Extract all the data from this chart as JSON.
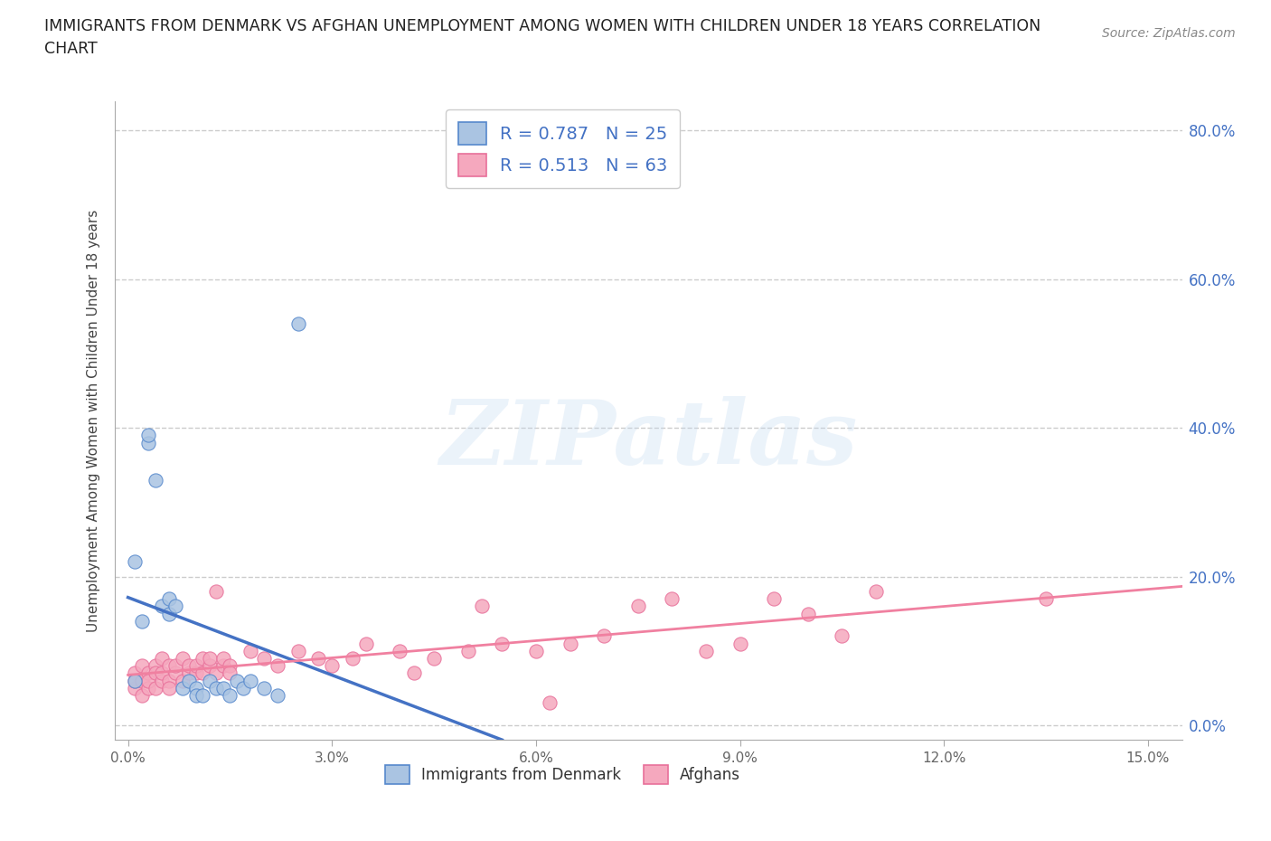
{
  "title_line1": "IMMIGRANTS FROM DENMARK VS AFGHAN UNEMPLOYMENT AMONG WOMEN WITH CHILDREN UNDER 18 YEARS CORRELATION",
  "title_line2": "CHART",
  "source": "Source: ZipAtlas.com",
  "ylabel": "Unemployment Among Women with Children Under 18 years",
  "x_ticks": [
    0.0,
    0.03,
    0.06,
    0.09,
    0.12,
    0.15
  ],
  "x_tick_labels": [
    "0.0%",
    "3.0%",
    "6.0%",
    "9.0%",
    "12.0%",
    "15.0%"
  ],
  "y_ticks": [
    0.0,
    0.2,
    0.4,
    0.6,
    0.8
  ],
  "y_tick_labels_right": [
    "0.0%",
    "20.0%",
    "40.0%",
    "60.0%",
    "80.0%"
  ],
  "xlim": [
    -0.002,
    0.155
  ],
  "ylim": [
    -0.02,
    0.84
  ],
  "denmark_face_color": "#aac4e2",
  "denmark_edge_color": "#5588cc",
  "afghan_face_color": "#f5a8be",
  "afghan_edge_color": "#e8709a",
  "denmark_line_color": "#4472c4",
  "afghan_line_color": "#f080a0",
  "denmark_R": "0.787",
  "denmark_N": "25",
  "afghan_R": "0.513",
  "afghan_N": "63",
  "watermark_text": "ZIPatlas",
  "legend_label_denmark": "Immigrants from Denmark",
  "legend_label_afghan": "Afghans",
  "denmark_scatter_x": [
    0.001,
    0.001,
    0.002,
    0.003,
    0.003,
    0.004,
    0.005,
    0.006,
    0.006,
    0.007,
    0.008,
    0.009,
    0.01,
    0.01,
    0.011,
    0.012,
    0.013,
    0.014,
    0.015,
    0.016,
    0.017,
    0.018,
    0.02,
    0.022,
    0.025
  ],
  "denmark_scatter_y": [
    0.06,
    0.22,
    0.14,
    0.38,
    0.39,
    0.33,
    0.16,
    0.17,
    0.15,
    0.16,
    0.05,
    0.06,
    0.05,
    0.04,
    0.04,
    0.06,
    0.05,
    0.05,
    0.04,
    0.06,
    0.05,
    0.06,
    0.05,
    0.04,
    0.54
  ],
  "afghan_scatter_x": [
    0.001,
    0.001,
    0.001,
    0.002,
    0.002,
    0.002,
    0.003,
    0.003,
    0.003,
    0.004,
    0.004,
    0.004,
    0.005,
    0.005,
    0.005,
    0.006,
    0.006,
    0.006,
    0.007,
    0.007,
    0.008,
    0.008,
    0.009,
    0.009,
    0.01,
    0.01,
    0.011,
    0.011,
    0.012,
    0.012,
    0.013,
    0.013,
    0.014,
    0.014,
    0.015,
    0.015,
    0.018,
    0.02,
    0.022,
    0.025,
    0.028,
    0.03,
    0.033,
    0.035,
    0.04,
    0.042,
    0.045,
    0.05,
    0.052,
    0.055,
    0.06,
    0.062,
    0.065,
    0.07,
    0.075,
    0.08,
    0.085,
    0.09,
    0.095,
    0.1,
    0.105,
    0.11,
    0.135
  ],
  "afghan_scatter_y": [
    0.05,
    0.07,
    0.06,
    0.04,
    0.06,
    0.08,
    0.05,
    0.07,
    0.06,
    0.05,
    0.08,
    0.07,
    0.06,
    0.07,
    0.09,
    0.06,
    0.08,
    0.05,
    0.07,
    0.08,
    0.06,
    0.09,
    0.07,
    0.08,
    0.07,
    0.08,
    0.09,
    0.07,
    0.08,
    0.09,
    0.07,
    0.18,
    0.08,
    0.09,
    0.08,
    0.07,
    0.1,
    0.09,
    0.08,
    0.1,
    0.09,
    0.08,
    0.09,
    0.11,
    0.1,
    0.07,
    0.09,
    0.1,
    0.16,
    0.11,
    0.1,
    0.03,
    0.11,
    0.12,
    0.16,
    0.17,
    0.1,
    0.11,
    0.17,
    0.15,
    0.12,
    0.18,
    0.17
  ],
  "background_color": "#ffffff",
  "grid_color": "#cccccc",
  "title_color": "#222222",
  "axis_label_color": "#444444",
  "right_tick_color": "#4472c4",
  "tick_color": "#666666",
  "legend_text_color": "#333333",
  "legend_R_color": "#4472c4",
  "legend_N_color": "#4472c4"
}
